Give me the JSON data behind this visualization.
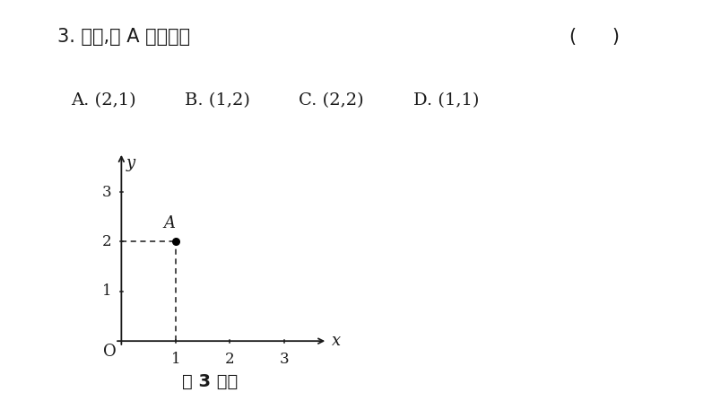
{
  "title_line1": "3. 如图,点 A 的坐标是",
  "title_bracket": "(      )",
  "opt_A": "A. (2,1)",
  "opt_B": "B. (1,2)",
  "opt_C": "C. (2,2)",
  "opt_D": "D. (1,1)",
  "caption": "第 3 题图",
  "point_A": [
    1,
    2
  ],
  "point_label": "A",
  "xlim": [
    -0.4,
    3.8
  ],
  "ylim": [
    -0.4,
    3.8
  ],
  "xticks": [
    1,
    2,
    3
  ],
  "yticks": [
    1,
    2,
    3
  ],
  "origin_label": "O",
  "xlabel": "x",
  "ylabel": "y",
  "bg_color": "#ffffff",
  "text_color": "#1a1a1a",
  "axis_color": "#1a1a1a"
}
